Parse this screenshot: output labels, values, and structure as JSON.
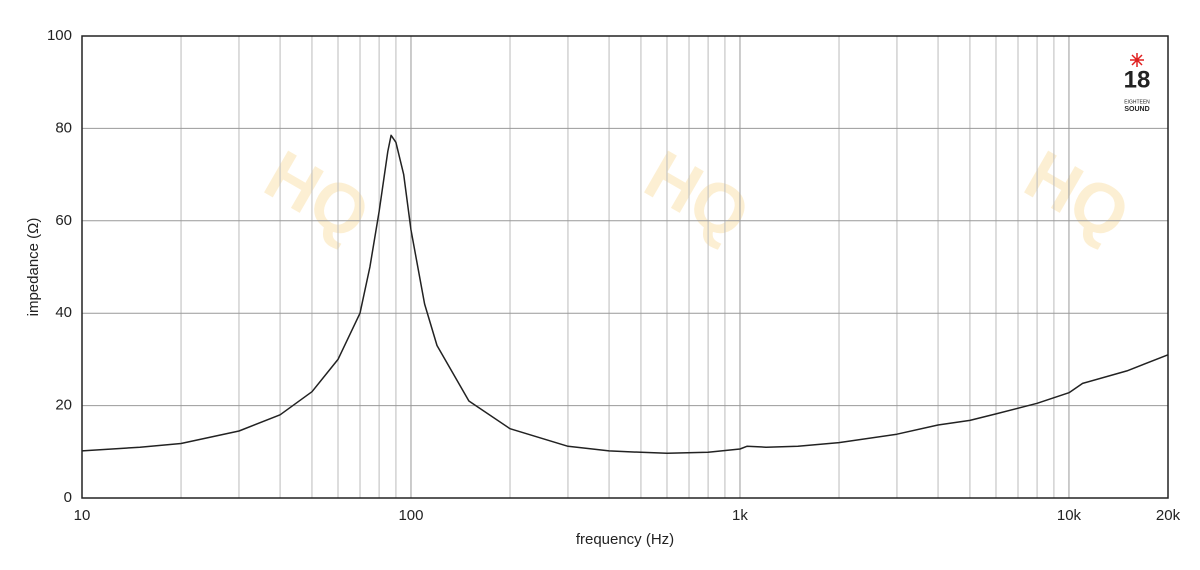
{
  "chart_data": {
    "type": "line",
    "x_label": "frequency (Hz)",
    "y_label": "impedance (Ω)",
    "x": [
      10,
      15,
      20,
      30,
      40,
      50,
      60,
      70,
      75,
      80,
      85,
      87,
      90,
      95,
      100,
      110,
      120,
      150,
      200,
      300,
      400,
      500,
      600,
      800,
      1000,
      1050,
      1200,
      1500,
      2000,
      3000,
      4000,
      5000,
      6000,
      8000,
      10000,
      11000,
      15000,
      20000
    ],
    "values": [
      10.2,
      11,
      11.8,
      14.5,
      18,
      23,
      30,
      40,
      50,
      62,
      75,
      78.5,
      77,
      70,
      58,
      42,
      33,
      21,
      15,
      11.2,
      10.2,
      9.9,
      9.7,
      9.9,
      10.6,
      11.2,
      11,
      11.2,
      12,
      13.8,
      15.8,
      16.8,
      18.2,
      20.5,
      22.8,
      24.8,
      27.5,
      31
    ],
    "color": "#222222",
    "xlim": [
      10,
      20000
    ],
    "ylim": [
      0,
      100
    ],
    "log_x": true,
    "grid": true,
    "xticks": [
      10,
      100,
      {
        "value": 1000,
        "label": "1k"
      },
      {
        "value": 10000,
        "label": "10k"
      },
      {
        "value": 20000,
        "label": "20k"
      }
    ],
    "xminor": [
      20,
      30,
      40,
      50,
      60,
      70,
      80,
      90,
      200,
      300,
      400,
      500,
      600,
      700,
      800,
      900,
      2000,
      3000,
      4000,
      5000,
      6000,
      7000,
      8000,
      9000
    ],
    "yticks": [
      0,
      20,
      40,
      60,
      80,
      100
    ],
    "logo": {
      "number": "18",
      "line1": "EIGHTEEN",
      "line2": "SOUND"
    }
  }
}
